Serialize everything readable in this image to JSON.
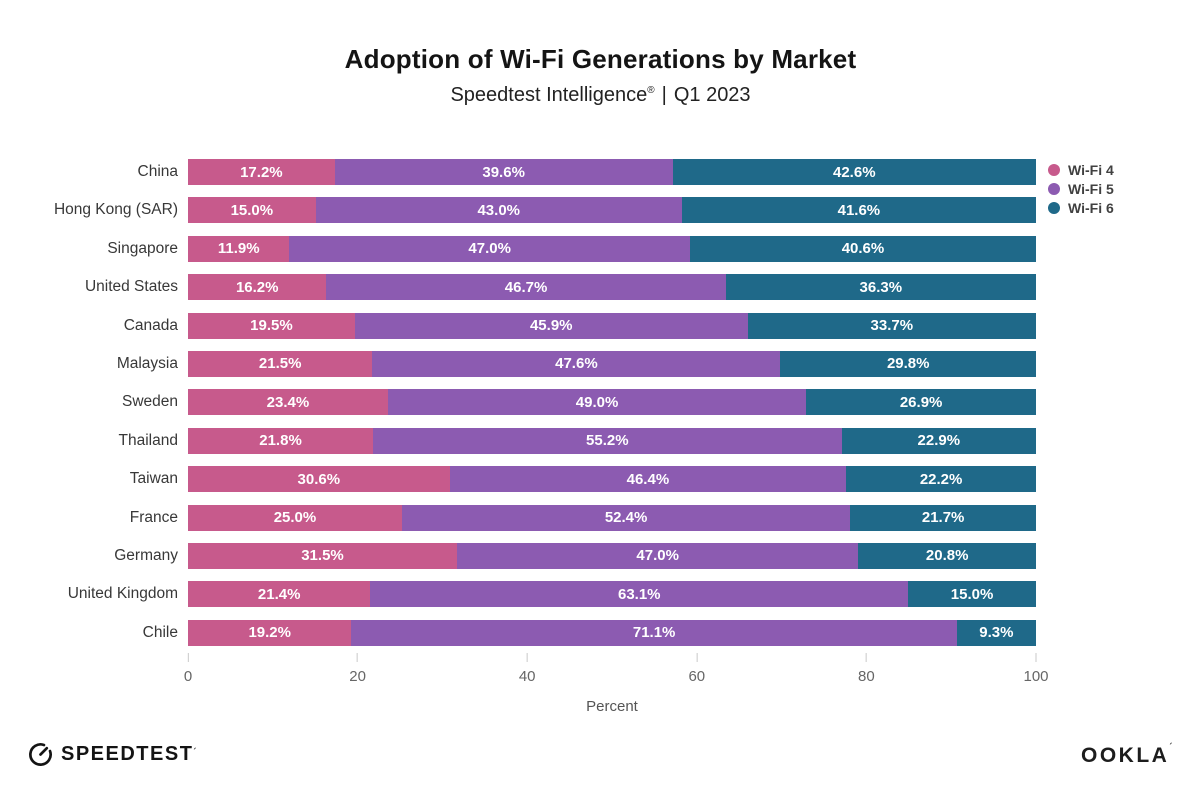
{
  "header": {
    "title": "Adoption of Wi-Fi Generations by Market",
    "subtitle": {
      "brand": "Speedtest Intelligence",
      "reg": "®",
      "separator": "|",
      "period": "Q1 2023"
    }
  },
  "chart_data": {
    "type": "bar",
    "orientation": "horizontal",
    "stacked": true,
    "normalized_to_100": true,
    "categories": [
      "China",
      "Hong Kong (SAR)",
      "Singapore",
      "United States",
      "Canada",
      "Malaysia",
      "Sweden",
      "Thailand",
      "Taiwan",
      "France",
      "Germany",
      "United Kingdom",
      "Chile"
    ],
    "series": [
      {
        "name": "Wi-Fi 4",
        "color": "#c75a8c",
        "values": [
          17.2,
          15.0,
          11.9,
          16.2,
          19.5,
          21.5,
          23.4,
          21.8,
          30.6,
          25.0,
          31.5,
          21.4,
          19.2
        ]
      },
      {
        "name": "Wi-Fi 5",
        "color": "#8c5bb1",
        "values": [
          39.6,
          43.0,
          47.0,
          46.7,
          45.9,
          47.6,
          49.0,
          55.2,
          46.4,
          52.4,
          47.0,
          63.1,
          71.1
        ]
      },
      {
        "name": "Wi-Fi 6",
        "color": "#1f6989",
        "values": [
          42.6,
          41.6,
          40.6,
          36.3,
          33.7,
          29.8,
          26.9,
          22.9,
          22.2,
          21.7,
          20.8,
          15.0,
          9.3
        ]
      }
    ],
    "value_label_suffix": "%",
    "xlabel": "Percent",
    "xticks": [
      0,
      20,
      40,
      60,
      80,
      100
    ],
    "xlim": [
      0,
      100
    ],
    "grid": false,
    "legend_position": "top-right",
    "bar_label_color": "#ffffff"
  },
  "footer": {
    "speedtest": "SPEEDTEST",
    "speedtest_mark": "´",
    "ookla": "OOKLA",
    "ookla_mark": "´"
  }
}
